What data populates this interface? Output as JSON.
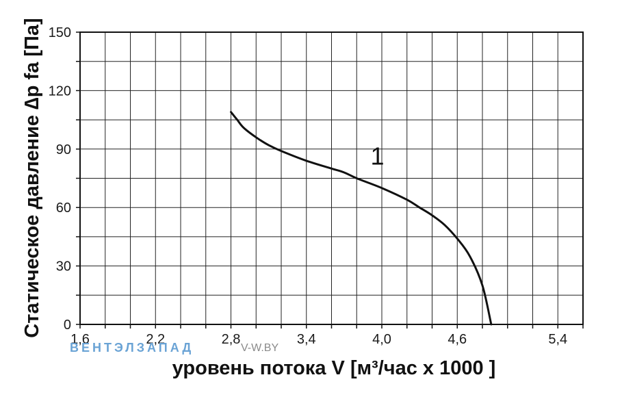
{
  "chart_data": {
    "type": "line",
    "xlabel": "уровень потока  V [м³/час x 1000 ]",
    "ylabel": "Статическое давление  ∆p fa [Па]",
    "xlim": [
      1.6,
      5.6
    ],
    "ylim": [
      0,
      150
    ],
    "x_ticks": [
      1.6,
      2.2,
      2.8,
      3.4,
      4.0,
      4.6,
      5.4
    ],
    "x_tick_labels": [
      "1,6",
      "2,2",
      "2,8",
      "3,4",
      "4,0",
      "4,6",
      "5,4"
    ],
    "y_ticks": [
      0,
      30,
      60,
      90,
      120,
      150
    ],
    "y_tick_labels": [
      "0",
      "30",
      "60",
      "90",
      "120",
      "150"
    ],
    "grid": true,
    "series": [
      {
        "label": "1",
        "color": "#111111",
        "x": [
          2.8,
          2.85,
          2.9,
          3.0,
          3.1,
          3.2,
          3.4,
          3.6,
          3.7,
          3.8,
          4.0,
          4.2,
          4.3,
          4.4,
          4.5,
          4.6,
          4.7,
          4.8,
          4.87
        ],
        "y": [
          109,
          105,
          101,
          96,
          92,
          89,
          84,
          80,
          78,
          75,
          70,
          64,
          60,
          56,
          51,
          44,
          35,
          20,
          0
        ]
      }
    ],
    "annotations": [
      {
        "text": "1",
        "x": 3.91,
        "y": 82
      }
    ]
  },
  "watermark": {
    "brand": "ВЕНТЭЛЗАПАД",
    "site": "V-W.BY",
    "color": "#6aa3d5"
  }
}
